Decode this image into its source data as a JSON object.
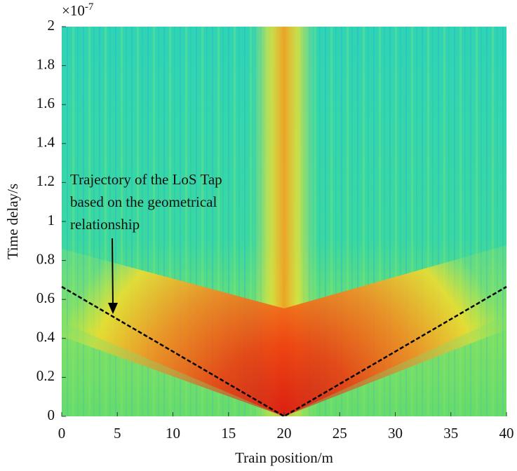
{
  "chart_data": {
    "type": "line",
    "x_label": "Train position/m",
    "y_label": "Time delay/s",
    "y_multiplier": {
      "base": "×10",
      "exponent": "-7"
    },
    "annotation": [
      "Trajectory of the LoS Tap",
      "based on the geometrical",
      "relationship"
    ],
    "x": [
      0,
      20,
      40
    ],
    "series": [
      {
        "color": "#000000",
        "values": [
          0.665,
          0,
          0.665
        ]
      }
    ],
    "line_style": "dashed",
    "xlim": [
      0,
      40
    ],
    "ylim": [
      0,
      2
    ],
    "xticks": [
      0,
      5,
      10,
      15,
      20,
      25,
      30,
      35,
      40
    ],
    "yticks": [
      0,
      0.2,
      0.4,
      0.6,
      0.8,
      1,
      1.2,
      1.4,
      1.6,
      1.8,
      2
    ]
  }
}
